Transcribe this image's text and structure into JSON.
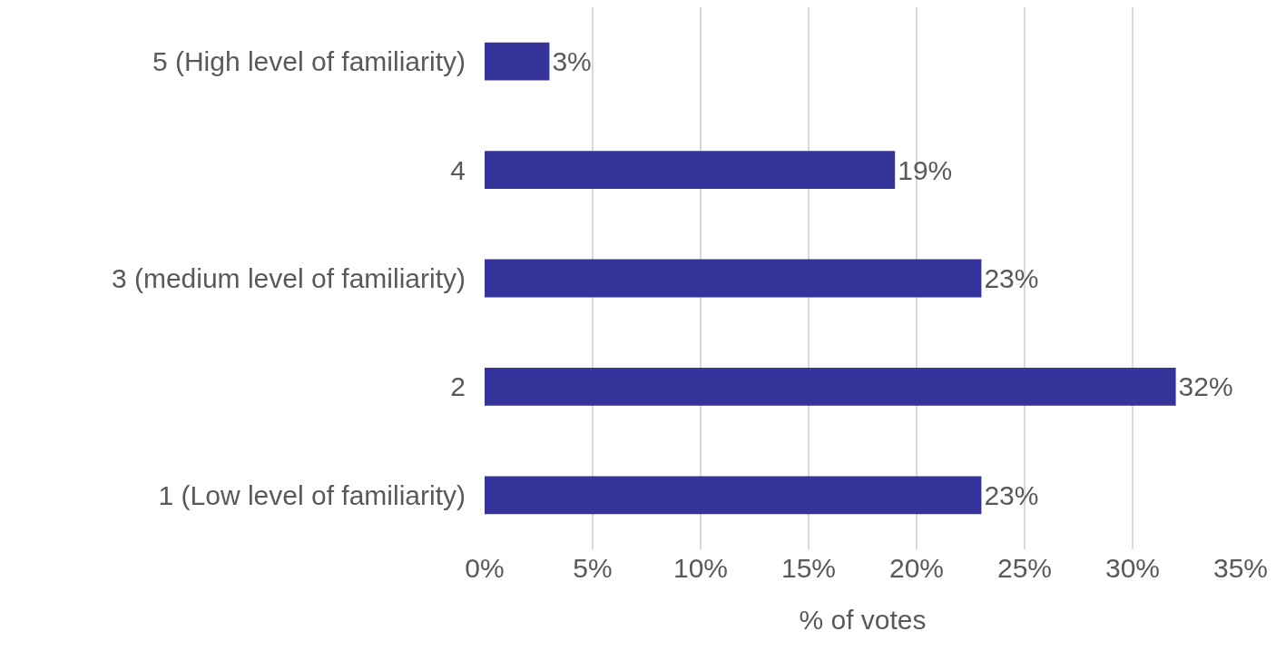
{
  "chart_data": {
    "type": "bar",
    "orientation": "horizontal",
    "categories": [
      "5 (High level of familiarity)",
      "4",
      "3 (medium level of familiarity)",
      "2",
      "1 (Low level of familiarity)"
    ],
    "values": [
      3,
      19,
      23,
      32,
      23
    ],
    "value_labels": [
      "3%",
      "19%",
      "23%",
      "32%",
      "23%"
    ],
    "color": "#35349a",
    "xlabel": "% of votes",
    "xlim": [
      0,
      35
    ],
    "xticks": [
      {
        "value": 0,
        "label": "0%"
      },
      {
        "value": 5,
        "label": "5%"
      },
      {
        "value": 10,
        "label": "10%"
      },
      {
        "value": 15,
        "label": "15%"
      },
      {
        "value": 20,
        "label": "20%"
      },
      {
        "value": 25,
        "label": "25%"
      },
      {
        "value": 30,
        "label": "30%"
      },
      {
        "value": 35,
        "label": "35%"
      }
    ],
    "grid": "x"
  }
}
